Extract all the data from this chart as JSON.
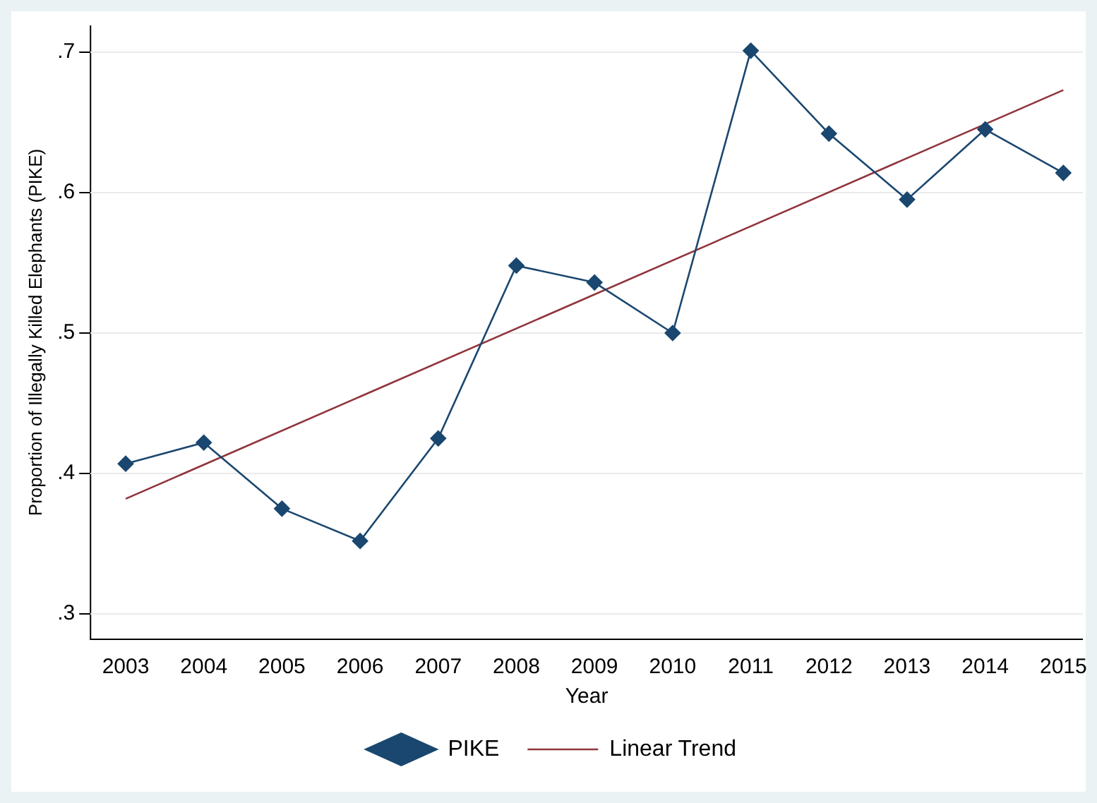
{
  "chart_data": {
    "type": "line",
    "xlabel": "Year",
    "ylabel": "Proportion of Illegally Killed Elephants (PIKE)",
    "x": [
      2003,
      2004,
      2005,
      2006,
      2007,
      2008,
      2009,
      2010,
      2011,
      2012,
      2013,
      2014,
      2015
    ],
    "series": [
      {
        "name": "PIKE",
        "color": "#1a476f",
        "marker": "diamond",
        "values": [
          0.407,
          0.422,
          0.375,
          0.352,
          0.425,
          0.548,
          0.536,
          0.5,
          0.701,
          0.642,
          0.595,
          0.645,
          0.614
        ]
      },
      {
        "name": "Linear Trend",
        "type": "line",
        "color": "#90353b",
        "marker": "none",
        "x": [
          2003,
          2015
        ],
        "values": [
          0.382,
          0.673
        ]
      }
    ],
    "xlim": [
      2002.55,
      2015.25
    ],
    "xticks": [
      2003,
      2004,
      2005,
      2006,
      2007,
      2008,
      2009,
      2010,
      2011,
      2012,
      2013,
      2014,
      2015
    ],
    "ylim": [
      0.282,
      0.719
    ],
    "yticks": [
      {
        "value": 0.3,
        "label": ".3"
      },
      {
        "value": 0.4,
        "label": ".4"
      },
      {
        "value": 0.5,
        "label": ".5"
      },
      {
        "value": 0.6,
        "label": ".6"
      },
      {
        "value": 0.7,
        "label": ".7"
      }
    ],
    "grid": "y",
    "legend": "bottom"
  }
}
